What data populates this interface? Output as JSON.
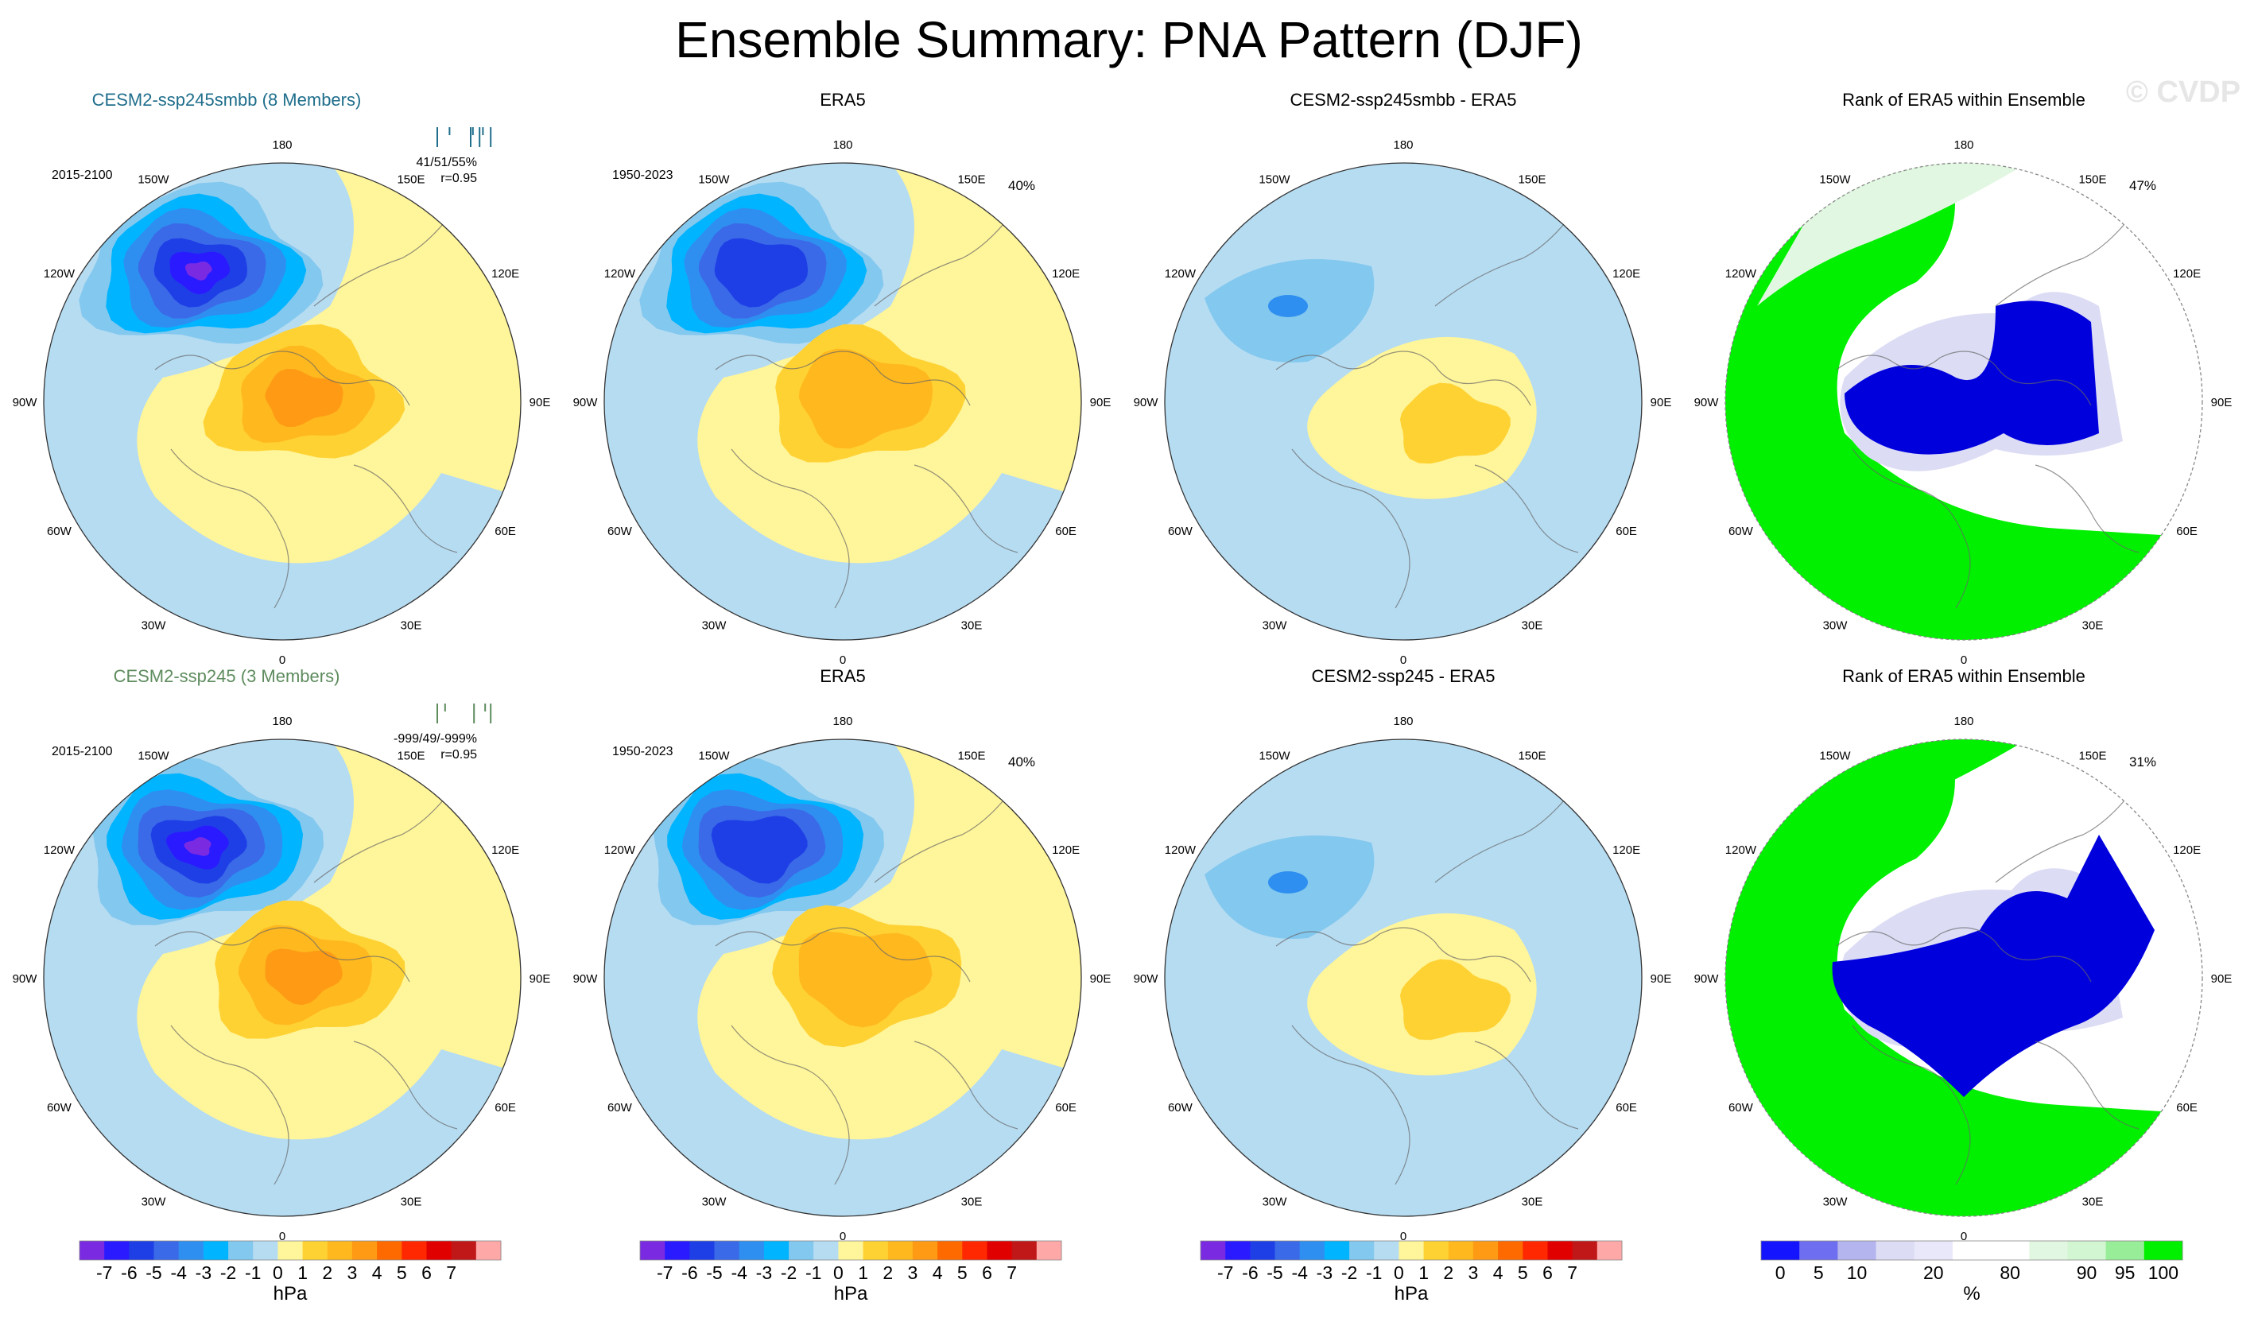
{
  "title": "Ensemble Summary: PNA Pattern (DJF)",
  "watermark": "© CVDP",
  "lon_labels": [
    "180",
    "150E",
    "120E",
    "90E",
    "60E",
    "30E",
    "0",
    "30W",
    "60W",
    "90W",
    "120W",
    "150W"
  ],
  "colors": {
    "model1_title": "#1f6e8c",
    "model2_title": "#5e8c5e",
    "ocean_light": "#b6dcf2",
    "land_yellow": "#fff59a",
    "rank_green": "#00f000",
    "rank_blue": "#0000dd",
    "rank_lavender": "#dcdcf5",
    "rank_palegreen": "#e2f7e2"
  },
  "rows": [
    {
      "panels": [
        {
          "kind": "model",
          "title": "CESM2-ssp245smbb (8 Members)",
          "period": "2015-2100",
          "stats": "41/51/55%",
          "corr": "r=0.95",
          "pct": ""
        },
        {
          "kind": "obs",
          "title": "ERA5",
          "period": "1950-2023",
          "stats": "",
          "corr": "",
          "pct": "40%"
        },
        {
          "kind": "diff",
          "title": "CESM2-ssp245smbb - ERA5",
          "period": "",
          "stats": "",
          "corr": "",
          "pct": ""
        },
        {
          "kind": "rank",
          "title": "Rank of ERA5 within Ensemble",
          "period": "",
          "stats": "",
          "corr": "",
          "pct": "47%"
        }
      ]
    },
    {
      "panels": [
        {
          "kind": "model",
          "title": "CESM2-ssp245 (3 Members)",
          "period": "2015-2100",
          "stats": "-999/49/-999%",
          "corr": "r=0.95",
          "pct": ""
        },
        {
          "kind": "obs",
          "title": "ERA5",
          "period": "1950-2023",
          "stats": "",
          "corr": "",
          "pct": "40%"
        },
        {
          "kind": "diff",
          "title": "CESM2-ssp245 - ERA5",
          "period": "",
          "stats": "",
          "corr": "",
          "pct": ""
        },
        {
          "kind": "rank",
          "title": "Rank of ERA5 within Ensemble",
          "period": "",
          "stats": "",
          "corr": "",
          "pct": "31%"
        }
      ]
    }
  ],
  "hpa_colorbar": {
    "colors": [
      "#7a2be2",
      "#2a1aff",
      "#1f3fe6",
      "#3a6ae8",
      "#2f8ff0",
      "#00b4ff",
      "#83c8ee",
      "#b6dcf2",
      "#fff59a",
      "#ffd234",
      "#ffb81e",
      "#ff9a14",
      "#ff6a00",
      "#ff2800",
      "#e00000",
      "#c01818",
      "#ffa8a8"
    ],
    "ticks": [
      "-7",
      "-6",
      "-5",
      "-4",
      "-3",
      "-2",
      "-1",
      "0",
      "1",
      "2",
      "3",
      "4",
      "5",
      "6",
      "7"
    ],
    "unit": "hPa"
  },
  "pct_colorbar": {
    "colors": [
      "#1414ff",
      "#6e6ef0",
      "#b4b4ee",
      "#dcdcf5",
      "#e8e8fa",
      "#ffffff",
      "#ffffff",
      "#e2f7e2",
      "#d2f5d2",
      "#98ee98",
      "#00f000"
    ],
    "ticks": [
      "0",
      "5",
      "10",
      "20",
      "80",
      "90",
      "95",
      "100"
    ],
    "unit": "%"
  }
}
